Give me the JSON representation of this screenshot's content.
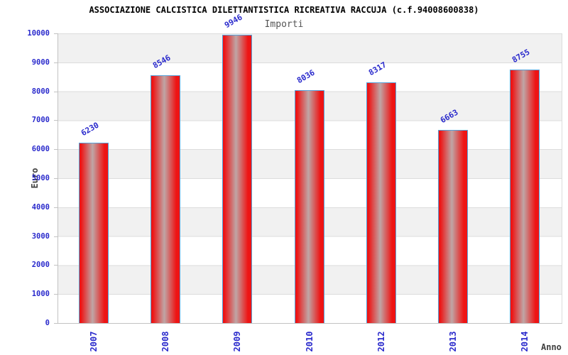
{
  "title": "ASSOCIAZIONE CALCISTICA DILETTANTISTICA RICREATIVA RACCUJA (c.f.94008600838)",
  "chart_data": {
    "type": "bar",
    "title": "ASSOCIAZIONE CALCISTICA DILETTANTISTICA RICREATIVA RACCUJA (c.f.94008600838)",
    "subtitle": "Importi",
    "xlabel": "Anno",
    "ylabel": "Euro",
    "categories": [
      "2007",
      "2008",
      "2009",
      "2010",
      "2012",
      "2013",
      "2014"
    ],
    "values": [
      6230,
      8546,
      9946,
      8036,
      8317,
      6663,
      8755
    ],
    "ylim": [
      0,
      10000
    ],
    "yticks": [
      0,
      1000,
      2000,
      3000,
      4000,
      5000,
      6000,
      7000,
      8000,
      9000,
      10000
    ],
    "grid": "alternating horizontal bands every 1000, gray/white",
    "legend": "none",
    "value_labels": "rotated above each bar",
    "x_labels_rotation": -90
  },
  "colors": {
    "label_blue": "#2a2acc",
    "bar_red": "#ee1414",
    "bar_highlight": "#bfa6a6",
    "bar_border": "#55a1d9",
    "band_gray": "#f1f1f1",
    "grid_line": "#dcdcdc",
    "axis_line": "#c2c2c2",
    "title_color": "#000000",
    "subtitle_color": "#555555",
    "axis_title_color": "#404040",
    "background": "#ffffff"
  }
}
